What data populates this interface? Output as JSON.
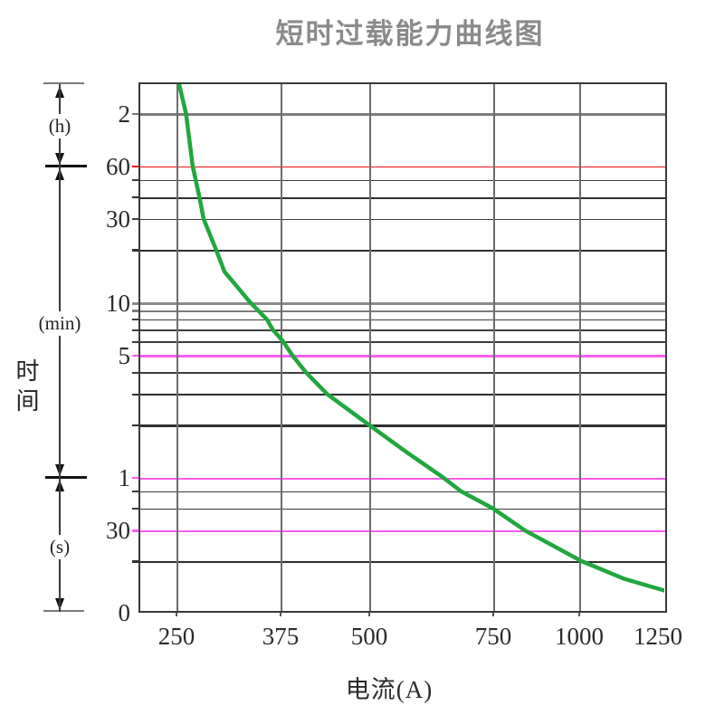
{
  "title": "短时过载能力曲线图",
  "colors": {
    "curve": "#21a73d",
    "red_limit": "#ee1111",
    "magenta_limit": "#f95df2",
    "grid_dark": "#3c3c3c",
    "grid_gray": "#7c7c7c",
    "text": "#2b2b2b",
    "title_gray": "#8a8a8a"
  },
  "x_axis": {
    "title": "电流(A)",
    "ticks": [
      {
        "label": "250",
        "A": 250
      },
      {
        "label": "375",
        "A": 375
      },
      {
        "label": "500",
        "A": 500
      },
      {
        "label": "750",
        "A": 750
      },
      {
        "label": "1000",
        "A": 1000
      },
      {
        "label": "1250",
        "A": 1250
      }
    ]
  },
  "y_axis": {
    "title": "时间",
    "unit_bands": [
      {
        "label": "(h)"
      },
      {
        "label": "(min)"
      },
      {
        "label": "(s)"
      }
    ],
    "ticks": [
      {
        "label": "2",
        "t_min": 120
      },
      {
        "label": "60",
        "t_min": 60
      },
      {
        "label": "30",
        "t_min": 30
      },
      {
        "label": "10",
        "t_min": 10
      },
      {
        "label": "5",
        "t_min": 5
      },
      {
        "label": "1",
        "t_min": 1
      },
      {
        "label": "30",
        "t_min": 0.5
      },
      {
        "label": "0",
        "t_min": null
      }
    ]
  },
  "chart_data": {
    "type": "line",
    "title": "短时过载能力曲线图",
    "xlabel": "电流(A)",
    "ylabel": "时间",
    "x_scale": "compressed ratio scale, ticks 250/375/500/750/1000/1250 A",
    "y_scale": "logarithmic time, bands (h)/(min)/(s), ticks 2h, 60/30/10/5/1 min, 30s, 0",
    "grid": true,
    "x_ticks": [
      250,
      375,
      500,
      750,
      1000,
      1250
    ],
    "y_gridlines_min": [
      [
        120,
        "g2"
      ],
      [
        60,
        "red"
      ],
      [
        50,
        "d1"
      ],
      [
        40,
        "d2"
      ],
      [
        30,
        "d1"
      ],
      [
        20,
        "d2"
      ],
      [
        10,
        "g3"
      ],
      [
        9,
        "g2"
      ],
      [
        8,
        "d1"
      ],
      [
        7,
        "d1"
      ],
      [
        6,
        "d1"
      ],
      [
        5,
        "mag"
      ],
      [
        4,
        "d1"
      ],
      [
        3,
        "d2"
      ],
      [
        2,
        "d2"
      ],
      [
        1,
        "mag"
      ],
      [
        0.8333,
        "d1"
      ],
      [
        0.6667,
        "d1"
      ],
      [
        0.5,
        "mag"
      ],
      [
        0.3333,
        "d2"
      ]
    ],
    "reference_lines": [
      {
        "t_min": 60,
        "color": "red"
      },
      {
        "t_min": 5,
        "color": "magenta"
      },
      {
        "t_min": 1,
        "color": "magenta"
      },
      {
        "t_min": 0.5,
        "color": "magenta"
      }
    ],
    "series": [
      {
        "name": "短时过载能力曲线",
        "color": "#21a73d",
        "points_A_tmin": [
          [
            253,
            181
          ],
          [
            262,
            120
          ],
          [
            270,
            60
          ],
          [
            278,
            40
          ],
          [
            283,
            30
          ],
          [
            298,
            20
          ],
          [
            308,
            15
          ],
          [
            339,
            10
          ],
          [
            359,
            8
          ],
          [
            366,
            7
          ],
          [
            379,
            6
          ],
          [
            392,
            5
          ],
          [
            411,
            4
          ],
          [
            441,
            3
          ],
          [
            500,
            2
          ],
          [
            577,
            1.39
          ],
          [
            650,
            1
          ],
          [
            686,
            0.833
          ],
          [
            750,
            0.667
          ],
          [
            842,
            0.5
          ],
          [
            1008,
            0.333
          ],
          [
            1129,
            0.264
          ],
          [
            1245,
            0.226
          ]
        ]
      }
    ]
  }
}
